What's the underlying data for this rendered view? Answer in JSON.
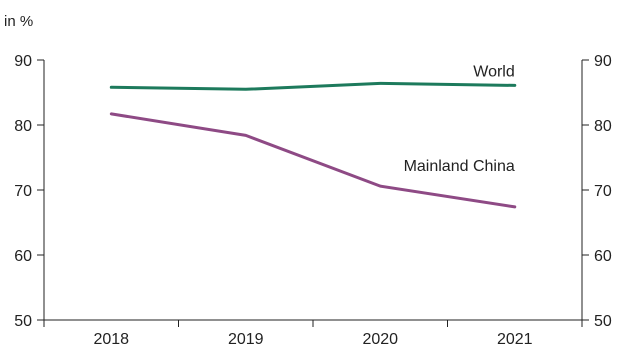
{
  "chart_data": {
    "type": "line",
    "unit_label": "in %",
    "categories": [
      "2018",
      "2019",
      "2020",
      "2021"
    ],
    "ylim": [
      50,
      90
    ],
    "yticks": [
      50,
      60,
      70,
      80,
      90
    ],
    "grid": false,
    "legend": "inline labels at line ends",
    "series": [
      {
        "name": "World",
        "color": "#1d7a5c",
        "values": [
          85.8,
          85.5,
          86.4,
          86.1
        ]
      },
      {
        "name": "Mainland China",
        "color": "#8e4a85",
        "values": [
          81.7,
          78.4,
          70.6,
          67.4
        ]
      }
    ]
  }
}
